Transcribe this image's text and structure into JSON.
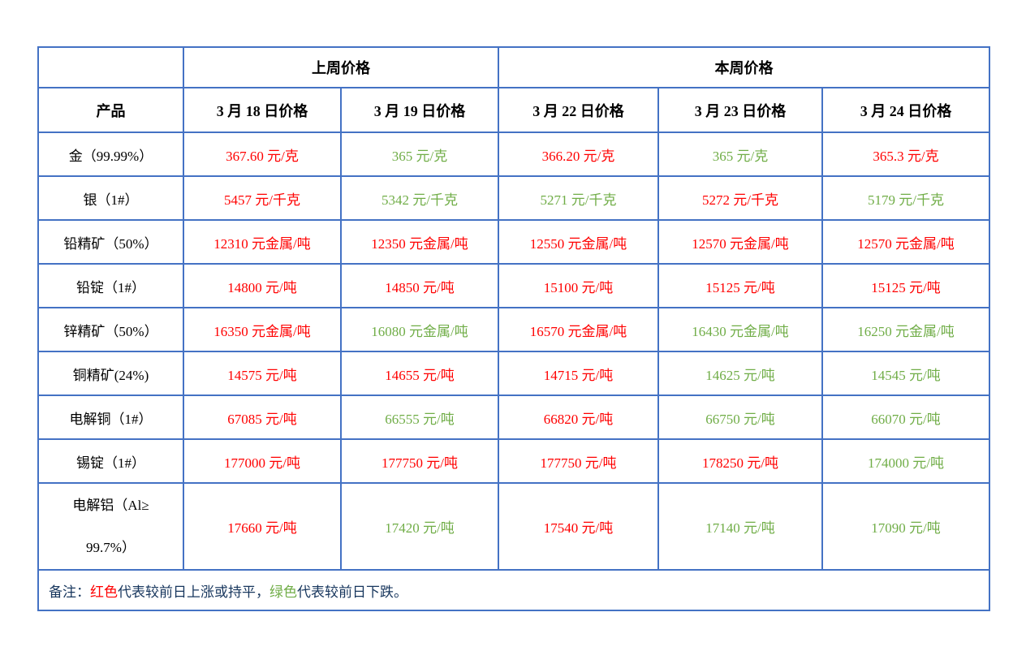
{
  "colors": {
    "border": "#4472c4",
    "up": "#ff0000",
    "down": "#70ad47",
    "note_text": "#17365d",
    "header_text": "#000000",
    "background": "#ffffff"
  },
  "table": {
    "group_headers": [
      {
        "label": "",
        "span": 1
      },
      {
        "label": "上周价格",
        "span": 2
      },
      {
        "label": "本周价格",
        "span": 3
      }
    ],
    "columns": [
      "产品",
      "3 月 18 日价格",
      "3 月 19 日价格",
      "3 月 22 日价格",
      "3 月 23 日价格",
      "3 月 24 日价格"
    ],
    "rows": [
      {
        "product": "金（99.99%）",
        "cells": [
          {
            "text": "367.60 元/克",
            "color": "up"
          },
          {
            "text": "365 元/克",
            "color": "down"
          },
          {
            "text": "366.20 元/克",
            "color": "up"
          },
          {
            "text": "365 元/克",
            "color": "down"
          },
          {
            "text": "365.3 元/克",
            "color": "up"
          }
        ]
      },
      {
        "product": "银（1#）",
        "cells": [
          {
            "text": "5457 元/千克",
            "color": "up"
          },
          {
            "text": "5342 元/千克",
            "color": "down"
          },
          {
            "text": "5271 元/千克",
            "color": "down"
          },
          {
            "text": "5272 元/千克",
            "color": "up"
          },
          {
            "text": "5179 元/千克",
            "color": "down"
          }
        ]
      },
      {
        "product": "铅精矿（50%）",
        "cells": [
          {
            "text": "12310 元金属/吨",
            "color": "up"
          },
          {
            "text": "12350 元金属/吨",
            "color": "up"
          },
          {
            "text": "12550 元金属/吨",
            "color": "up"
          },
          {
            "text": "12570 元金属/吨",
            "color": "up"
          },
          {
            "text": "12570 元金属/吨",
            "color": "up"
          }
        ]
      },
      {
        "product": "铅锭（1#）",
        "cells": [
          {
            "text": "14800 元/吨",
            "color": "up"
          },
          {
            "text": "14850 元/吨",
            "color": "up"
          },
          {
            "text": "15100 元/吨",
            "color": "up"
          },
          {
            "text": "15125 元/吨",
            "color": "up"
          },
          {
            "text": "15125 元/吨",
            "color": "up"
          }
        ]
      },
      {
        "product": "锌精矿（50%）",
        "cells": [
          {
            "text": "16350 元金属/吨",
            "color": "up"
          },
          {
            "text": "16080 元金属/吨",
            "color": "down"
          },
          {
            "text": "16570 元金属/吨",
            "color": "up"
          },
          {
            "text": "16430 元金属/吨",
            "color": "down"
          },
          {
            "text": "16250 元金属/吨",
            "color": "down"
          }
        ]
      },
      {
        "product": "铜精矿(24%)",
        "cells": [
          {
            "text": "14575 元/吨",
            "color": "up"
          },
          {
            "text": "14655 元/吨",
            "color": "up"
          },
          {
            "text": "14715 元/吨",
            "color": "up"
          },
          {
            "text": "14625 元/吨",
            "color": "down"
          },
          {
            "text": "14545 元/吨",
            "color": "down"
          }
        ]
      },
      {
        "product": "电解铜（1#）",
        "cells": [
          {
            "text": "67085 元/吨",
            "color": "up"
          },
          {
            "text": "66555 元/吨",
            "color": "down"
          },
          {
            "text": "66820 元/吨",
            "color": "up"
          },
          {
            "text": "66750 元/吨",
            "color": "down"
          },
          {
            "text": "66070 元/吨",
            "color": "down"
          }
        ]
      },
      {
        "product": "锡锭（1#）",
        "cells": [
          {
            "text": "177000 元/吨",
            "color": "up"
          },
          {
            "text": "177750 元/吨",
            "color": "up"
          },
          {
            "text": "177750 元/吨",
            "color": "up"
          },
          {
            "text": "178250 元/吨",
            "color": "up"
          },
          {
            "text": "174000 元/吨",
            "color": "down"
          }
        ]
      },
      {
        "product": [
          "电解铝（Al≥",
          "99.7%）"
        ],
        "tall": true,
        "cells": [
          {
            "text": "17660 元/吨",
            "color": "up"
          },
          {
            "text": "17420 元/吨",
            "color": "down"
          },
          {
            "text": "17540 元/吨",
            "color": "up"
          },
          {
            "text": "17140 元/吨",
            "color": "down"
          },
          {
            "text": "17090 元/吨",
            "color": "down"
          }
        ]
      }
    ],
    "note": {
      "prefix": "备注：",
      "red_label": "红色",
      "red_desc": "代表较前日上涨或持平，",
      "green_label": "绿色",
      "green_desc": "代表较前日下跌。"
    }
  }
}
